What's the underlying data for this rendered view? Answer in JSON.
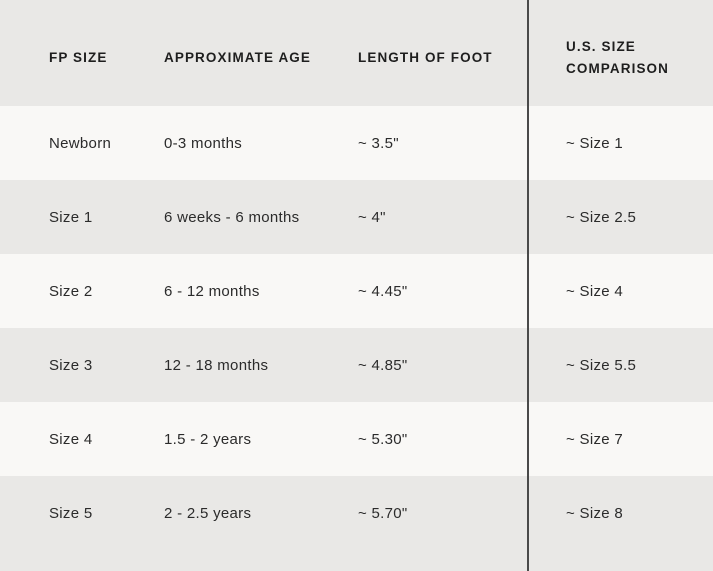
{
  "table": {
    "columns": [
      {
        "key": "fp_size",
        "label": "FP SIZE"
      },
      {
        "key": "age",
        "label": "APPROXIMATE AGE"
      },
      {
        "key": "foot_length",
        "label": "LENGTH OF FOOT"
      },
      {
        "key": "us_size",
        "label": "U.S. SIZE COMPARISON"
      }
    ],
    "rows": [
      {
        "fp_size": "Newborn",
        "age": "0-3 months",
        "foot_length": "~ 3.5\"",
        "us_size": "~ Size 1"
      },
      {
        "fp_size": "Size 1",
        "age": "6 weeks - 6 months",
        "foot_length": "~ 4\"",
        "us_size": "~ Size 2.5"
      },
      {
        "fp_size": "Size 2",
        "age": "6 - 12 months",
        "foot_length": "~ 4.45\"",
        "us_size": "~ Size 4"
      },
      {
        "fp_size": "Size 3",
        "age": "12 - 18 months",
        "foot_length": "~ 4.85\"",
        "us_size": "~ Size 5.5"
      },
      {
        "fp_size": "Size 4",
        "age": "1.5 - 2 years",
        "foot_length": "~ 5.30\"",
        "us_size": "~ Size 7"
      },
      {
        "fp_size": "Size 5",
        "age": "2 - 2.5 years",
        "foot_length": "~ 5.70\"",
        "us_size": "~ Size 8"
      }
    ]
  },
  "colors": {
    "stripe_gray": "#e9e8e6",
    "stripe_light": "#f9f8f6",
    "divider": "#4a4a4a",
    "header_text": "#1e1e1e",
    "body_text": "#2b2b2b"
  }
}
